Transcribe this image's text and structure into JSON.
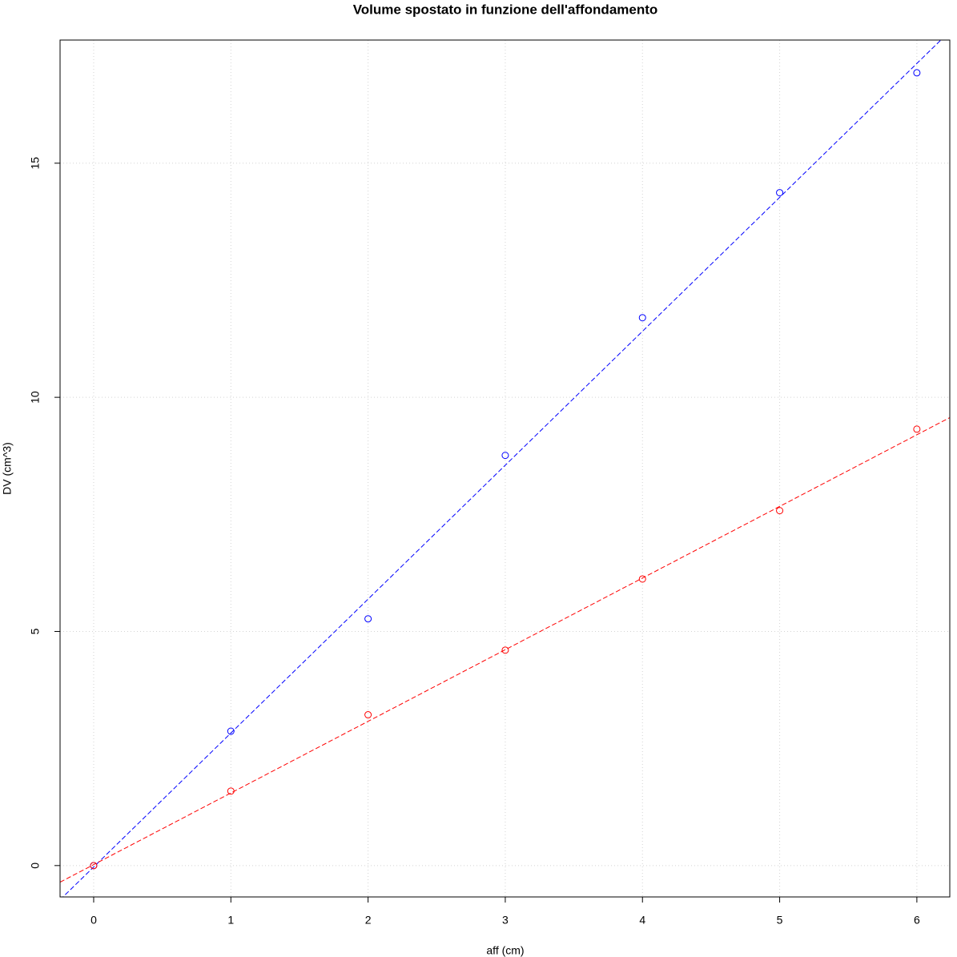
{
  "chart_data": {
    "type": "scatter",
    "title": "Volume spostato in funzione dell'affondamento",
    "xlabel": "aff (cm)",
    "ylabel": "DV (cm^3)",
    "xlim": [
      -0.245,
      6.24
    ],
    "ylim": [
      -0.67,
      17.63
    ],
    "xticks": [
      0,
      1,
      2,
      3,
      4,
      5,
      6
    ],
    "yticks": [
      0,
      5,
      10,
      15
    ],
    "grid": true,
    "series": [
      {
        "color": "#0000ff",
        "x": [
          0,
          1,
          2,
          3,
          4,
          5,
          6
        ],
        "values": [
          0,
          2.87,
          5.27,
          8.76,
          11.7,
          14.37,
          16.93
        ]
      },
      {
        "color": "#ff0000",
        "x": [
          0,
          1,
          2,
          3,
          4,
          5,
          6
        ],
        "values": [
          0,
          1.59,
          3.22,
          4.6,
          6.12,
          7.58,
          9.32
        ]
      }
    ],
    "fit_lines": [
      {
        "color": "#0000ff",
        "intercept": -0.03,
        "slope": 2.86
      },
      {
        "color": "#ff0000",
        "intercept": 0.02,
        "slope": 1.53
      }
    ]
  }
}
